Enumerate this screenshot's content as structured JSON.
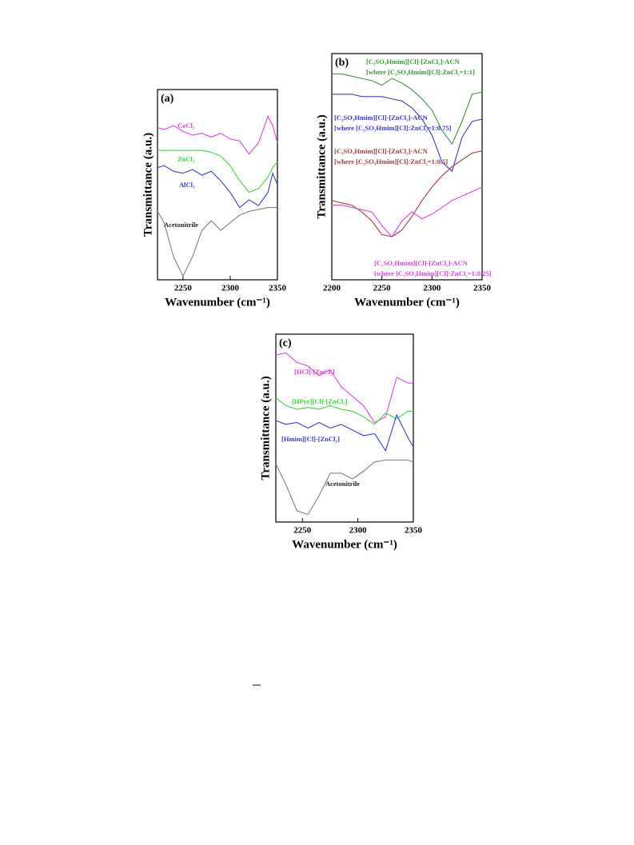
{
  "chart_data": [
    {
      "type": "line",
      "panel_label": "(a)",
      "y_label": "Transmittance (a.u.)",
      "x_label": "Wavenumber (cm⁻¹)",
      "xlim": [
        2223,
        2350
      ],
      "xticks": [
        2250,
        2300,
        2350
      ],
      "ylim": [
        0,
        10
      ],
      "x": [
        2223,
        2230,
        2240,
        2250,
        2260,
        2270,
        2280,
        2290,
        2300,
        2310,
        2320,
        2330,
        2340,
        2345,
        2350
      ],
      "series": [
        {
          "name": "CoCl₂",
          "color": "#e040e0",
          "values": [
            8.0,
            7.9,
            8.1,
            7.8,
            7.6,
            7.7,
            7.5,
            7.7,
            7.4,
            7.3,
            6.6,
            7.2,
            8.6,
            8.1,
            7.2
          ]
        },
        {
          "name": "ZnCl₂",
          "color": "#33dd33",
          "values": [
            6.8,
            6.8,
            6.8,
            6.8,
            6.8,
            6.8,
            6.7,
            6.5,
            6.0,
            5.2,
            4.6,
            4.8,
            5.4,
            5.9,
            6.2
          ]
        },
        {
          "name": "AlCl₃",
          "color": "#3b3bdd",
          "values": [
            5.9,
            6.0,
            5.7,
            5.6,
            5.8,
            5.5,
            5.7,
            5.2,
            4.6,
            3.8,
            4.2,
            3.9,
            4.6,
            5.6,
            5.0
          ]
        },
        {
          "name": "Acetonitrile",
          "color": "#808080",
          "values": [
            3.6,
            3.0,
            1.2,
            0.2,
            1.2,
            2.6,
            3.1,
            2.6,
            3.0,
            3.4,
            3.6,
            3.7,
            3.8,
            3.8,
            3.8
          ]
        }
      ]
    },
    {
      "type": "line",
      "panel_label": "(b)",
      "y_label": "Transmittance (a.u.)",
      "x_label": "Wavenumber (cm⁻¹)",
      "xlim": [
        2200,
        2350
      ],
      "xticks": [
        2200,
        2250,
        2300,
        2350
      ],
      "ylim": [
        0,
        10
      ],
      "x": [
        2200,
        2210,
        2220,
        2230,
        2240,
        2250,
        2260,
        2270,
        2280,
        2290,
        2300,
        2310,
        2320,
        2330,
        2340,
        2350
      ],
      "series": [
        {
          "name": "[C₂SO₃Hmim][Cl]-[ZnCl₂]-ACN",
          "condition": "[where [C₂SO₃Hmim][Cl]:ZnCl₂=1:1]",
          "color": "#3a9a3a",
          "values": [
            9.1,
            9.1,
            9.0,
            8.9,
            8.8,
            8.6,
            8.9,
            8.7,
            8.4,
            8.0,
            7.5,
            6.6,
            6.0,
            7.0,
            8.2,
            8.3
          ]
        },
        {
          "name": "[C₂SO₃Hmim][Cl]-[ZnCl₂]-ACN",
          "condition": "[where [C₂SO₃Hmim][Cl]:ZnCl₂=1:0.75]",
          "color": "#3b3bdd",
          "values": [
            8.2,
            8.2,
            8.2,
            8.1,
            8.1,
            8.1,
            8.0,
            7.9,
            7.6,
            7.1,
            6.4,
            5.2,
            4.8,
            6.3,
            7.0,
            7.1
          ]
        },
        {
          "name": "[C₂SO₃Hmim][Cl]-[ZnCl₂]-ACN",
          "condition": "[where [C₂SO₃Hmim][Cl]:ZnCl₂=1:0.5]",
          "color": "#a04040",
          "values": [
            3.5,
            3.4,
            3.3,
            3.0,
            2.6,
            2.0,
            1.9,
            2.2,
            2.8,
            3.5,
            4.1,
            4.6,
            5.0,
            5.3,
            5.6,
            5.7
          ]
        },
        {
          "name": "[C₂SO₃Hmim][Cl]-[ZnCl₂]-ACN",
          "condition": "[where [C₂SO₃Hmim][Cl]:ZnCl₂=1:0.25]",
          "color": "#e040e0",
          "values": [
            3.3,
            3.3,
            3.2,
            3.1,
            3.0,
            2.4,
            1.9,
            2.6,
            3.0,
            2.7,
            2.9,
            3.2,
            3.5,
            3.7,
            3.9,
            4.1
          ]
        }
      ]
    },
    {
      "type": "line",
      "panel_label": "(c)",
      "y_label": "Transmittance (a.u.)",
      "x_label": "Wavenumber (cm⁻¹)",
      "xlim": [
        2226,
        2350
      ],
      "xticks": [
        2250,
        2300,
        2350
      ],
      "ylim": [
        0,
        10
      ],
      "x": [
        2226,
        2235,
        2245,
        2255,
        2265,
        2275,
        2285,
        2295,
        2305,
        2315,
        2325,
        2335,
        2345,
        2350
      ],
      "series": [
        {
          "name": "[HCl]-[ZnCl₂]",
          "color": "#e040e0",
          "values": [
            8.9,
            9.0,
            8.5,
            8.3,
            7.8,
            8.1,
            7.2,
            6.7,
            6.2,
            5.3,
            5.6,
            7.7,
            7.4,
            7.4
          ]
        },
        {
          "name": "[HPyr][Cl]-[ZnCl₂]",
          "color": "#33dd33",
          "values": [
            6.6,
            6.2,
            6.0,
            6.1,
            6.0,
            6.2,
            6.0,
            5.9,
            5.6,
            5.2,
            5.8,
            5.5,
            5.9,
            5.9
          ]
        },
        {
          "name": "[Hmim][Cl]-[ZnCl₂]",
          "color": "#3b3bdd",
          "values": [
            5.4,
            5.2,
            5.3,
            5.0,
            5.3,
            5.0,
            5.2,
            4.9,
            4.6,
            4.7,
            3.8,
            5.7,
            4.5,
            4.0
          ]
        },
        {
          "name": "Acetonitrile",
          "color": "#808080",
          "values": [
            3.1,
            2.0,
            0.6,
            0.4,
            1.4,
            2.6,
            2.6,
            2.3,
            2.7,
            3.2,
            3.3,
            3.3,
            3.3,
            3.2
          ]
        }
      ]
    }
  ]
}
